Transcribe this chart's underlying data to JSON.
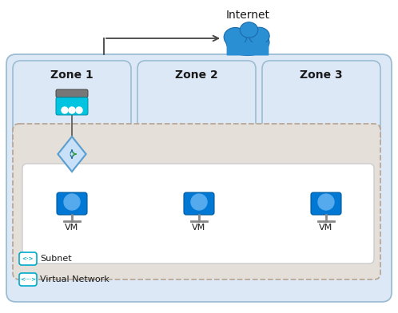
{
  "title": "Internet",
  "bg_color": "#ffffff",
  "zone_bg": "#dce8f5",
  "zone_border": "#9bbdd4",
  "zone_labels": [
    "Zone 1",
    "Zone 2",
    "Zone 3"
  ],
  "vm_label": "VM",
  "arrow_color": "#444444",
  "zone_label_fontsize": 10,
  "vm_label_fontsize": 8,
  "internet_fontsize": 10,
  "subnet_label": "Subnet",
  "vnet_label": "Virtual Network",
  "cloud_color": "#2b8fd4",
  "cloud_edge": "#1a6aaa"
}
